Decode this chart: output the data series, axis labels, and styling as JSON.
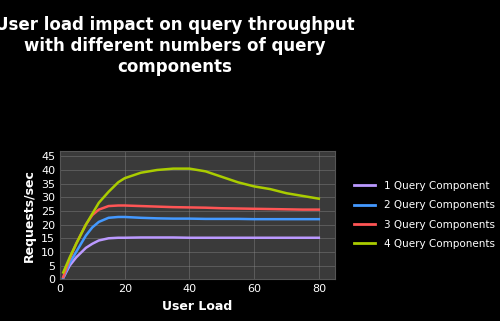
{
  "title": "User load impact on query throughput\nwith different numbers of query\ncomponents",
  "xlabel": "User Load",
  "ylabel": "Requests/sec",
  "background_color": "#000000",
  "plot_bg_color": "#3a3a3a",
  "title_color": "#ffffff",
  "label_color": "#ffffff",
  "tick_color": "#ffffff",
  "grid_color": "#888888",
  "xlim": [
    0,
    85
  ],
  "ylim": [
    0,
    47
  ],
  "xticks": [
    0,
    20,
    40,
    60,
    80
  ],
  "yticks": [
    0,
    5,
    10,
    15,
    20,
    25,
    30,
    35,
    40,
    45
  ],
  "series": [
    {
      "label": "1 Query Component",
      "color": "#bb99ff",
      "x": [
        1,
        3,
        5,
        8,
        10,
        12,
        15,
        18,
        20,
        25,
        30,
        35,
        40,
        45,
        50,
        55,
        60,
        65,
        70,
        75,
        80
      ],
      "y": [
        0.5,
        5.0,
        8.0,
        11.5,
        13.0,
        14.2,
        15.0,
        15.2,
        15.2,
        15.3,
        15.3,
        15.3,
        15.2,
        15.2,
        15.2,
        15.2,
        15.2,
        15.2,
        15.2,
        15.2,
        15.2
      ]
    },
    {
      "label": "2 Query Components",
      "color": "#4499ff",
      "x": [
        1,
        3,
        5,
        8,
        10,
        12,
        15,
        18,
        20,
        25,
        30,
        35,
        40,
        45,
        50,
        55,
        60,
        65,
        70,
        75,
        80
      ],
      "y": [
        0.5,
        6.0,
        10.0,
        16.0,
        19.0,
        21.0,
        22.5,
        22.8,
        22.8,
        22.5,
        22.3,
        22.2,
        22.2,
        22.1,
        22.1,
        22.1,
        22.0,
        22.0,
        22.0,
        22.0,
        22.0
      ]
    },
    {
      "label": "3 Query Components",
      "color": "#ff5555",
      "x": [
        1,
        3,
        5,
        8,
        10,
        12,
        15,
        18,
        20,
        25,
        30,
        35,
        40,
        45,
        50,
        55,
        60,
        65,
        70,
        75,
        80
      ],
      "y": [
        0.8,
        7.5,
        13.0,
        20.0,
        23.5,
        25.5,
        26.8,
        27.0,
        27.0,
        26.8,
        26.6,
        26.4,
        26.3,
        26.2,
        26.0,
        25.9,
        25.8,
        25.7,
        25.6,
        25.5,
        25.5
      ]
    },
    {
      "label": "4 Query Components",
      "color": "#aacc00",
      "x": [
        1,
        3,
        5,
        8,
        10,
        12,
        15,
        18,
        20,
        25,
        30,
        35,
        40,
        45,
        50,
        55,
        60,
        65,
        70,
        75,
        80
      ],
      "y": [
        2.5,
        8.0,
        13.0,
        20.0,
        24.0,
        28.0,
        32.0,
        35.5,
        37.0,
        39.0,
        40.0,
        40.5,
        40.5,
        39.5,
        37.5,
        35.5,
        34.0,
        33.0,
        31.5,
        30.5,
        29.5
      ]
    }
  ],
  "legend_fontsize": 7.5,
  "title_fontsize": 12,
  "axis_label_fontsize": 9,
  "tick_fontsize": 8
}
